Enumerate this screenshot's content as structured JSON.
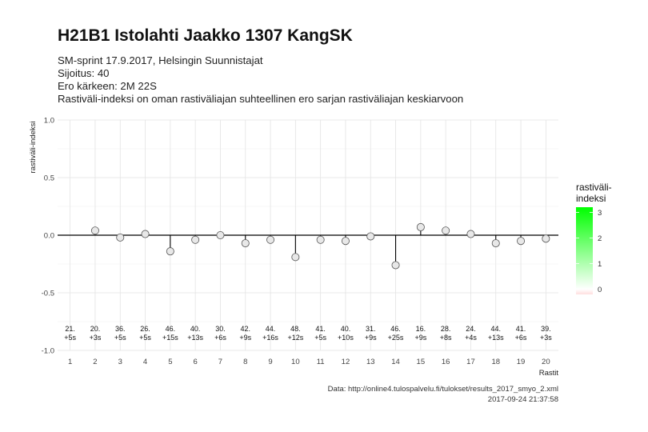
{
  "title": "H21B1 Istolahti Jaakko 1307 KangSK",
  "subtitle": [
    "SM-sprint 17.9.2017, Helsingin Suunnistajat",
    "Sijoitus: 40",
    "Ero kärkeen: 2M 22S",
    "Rastiväli-indeksi on oman rastiväliajan suhteellinen ero sarjan rastiväliajan keskiarvoon"
  ],
  "caption": {
    "source": "Data: http://online4.tulospalvelu.fi/tulokset/results_2017_smyo_2.xml",
    "timestamp": "2017-09-24 21:37:58"
  },
  "chart_data": {
    "type": "scatter",
    "xlabel": "Rastit",
    "ylabel": "rastiväli-indeksi",
    "xlim": [
      0.5,
      20.5
    ],
    "ylim": [
      -1.0,
      1.0
    ],
    "x_ticks": [
      1,
      2,
      3,
      4,
      5,
      6,
      7,
      8,
      9,
      10,
      11,
      12,
      13,
      14,
      15,
      16,
      17,
      18,
      19,
      20
    ],
    "y_ticks": [
      "1.0",
      "0.5",
      "0.0",
      "-0.5",
      "-1.0"
    ],
    "grid": true,
    "reference_line": 0,
    "points": [
      {
        "x": 1,
        "y": null,
        "rank": "21.",
        "diff": "+5s"
      },
      {
        "x": 2,
        "y": 0.04,
        "rank": "20.",
        "diff": "+3s"
      },
      {
        "x": 3,
        "y": -0.02,
        "rank": "36.",
        "diff": "+5s"
      },
      {
        "x": 4,
        "y": 0.01,
        "rank": "26.",
        "diff": "+5s"
      },
      {
        "x": 5,
        "y": -0.14,
        "rank": "46.",
        "diff": "+15s"
      },
      {
        "x": 6,
        "y": -0.04,
        "rank": "40.",
        "diff": "+13s"
      },
      {
        "x": 7,
        "y": 0.0,
        "rank": "30.",
        "diff": "+6s"
      },
      {
        "x": 8,
        "y": -0.07,
        "rank": "42.",
        "diff": "+9s"
      },
      {
        "x": 9,
        "y": -0.04,
        "rank": "44.",
        "diff": "+16s"
      },
      {
        "x": 10,
        "y": -0.19,
        "rank": "48.",
        "diff": "+12s"
      },
      {
        "x": 11,
        "y": -0.04,
        "rank": "41.",
        "diff": "+5s"
      },
      {
        "x": 12,
        "y": -0.05,
        "rank": "40.",
        "diff": "+10s"
      },
      {
        "x": 13,
        "y": -0.01,
        "rank": "31.",
        "diff": "+9s"
      },
      {
        "x": 14,
        "y": -0.26,
        "rank": "46.",
        "diff": "+25s"
      },
      {
        "x": 15,
        "y": 0.07,
        "rank": "16.",
        "diff": "+9s"
      },
      {
        "x": 16,
        "y": 0.04,
        "rank": "28.",
        "diff": "+8s"
      },
      {
        "x": 17,
        "y": 0.01,
        "rank": "24.",
        "diff": "+4s"
      },
      {
        "x": 18,
        "y": -0.07,
        "rank": "44.",
        "diff": "+13s"
      },
      {
        "x": 19,
        "y": -0.05,
        "rank": "41.",
        "diff": "+6s"
      },
      {
        "x": 20,
        "y": -0.03,
        "rank": "39.",
        "diff": "+3s"
      }
    ],
    "legend": {
      "title": [
        "rastiväli-",
        "indeksi"
      ],
      "placement": "right",
      "ticks": [
        3,
        2,
        1,
        0
      ],
      "range": [
        -0.2,
        3.2
      ],
      "color_low": "#ffffff",
      "color_high": "#00ff00",
      "color_below_zero": "#ffdede"
    },
    "point_color": "#e8e8e8",
    "colors": {
      "grid": "#e3e3e3",
      "zero_line": "#000000",
      "stem": "#000000",
      "point_stroke": "#555555"
    }
  }
}
